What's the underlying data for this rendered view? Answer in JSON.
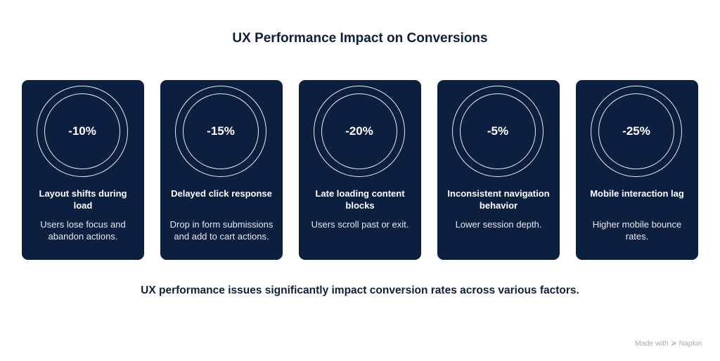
{
  "title": "UX Performance Impact on Conversions",
  "cards": [
    {
      "value": "-10%",
      "heading": "Layout shifts during load",
      "desc": "Users lose focus and abandon actions."
    },
    {
      "value": "-15%",
      "heading": "Delayed click response",
      "desc": "Drop in form submissions and add to cart actions."
    },
    {
      "value": "-20%",
      "heading": "Late loading content blocks",
      "desc": "Users scroll past or exit."
    },
    {
      "value": "-5%",
      "heading": "Inconsistent navigation behavior",
      "desc": "Lower session depth."
    },
    {
      "value": "-25%",
      "heading": "Mobile interaction lag",
      "desc": "Higher mobile bounce rates."
    }
  ],
  "footer": "UX performance issues significantly impact conversion rates across various factors.",
  "brand": "Made with ≽ Napkin",
  "colors": {
    "card": "#0d1f3f",
    "text": "#0e1f3c"
  }
}
